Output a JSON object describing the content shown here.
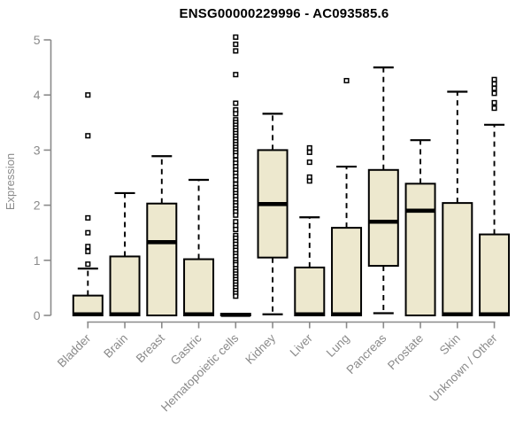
{
  "chart_data": {
    "type": "boxplot",
    "title": "ENSG00000229996 - AC093585.6",
    "ylabel": "Expression",
    "xlabel": "",
    "ylim": [
      0,
      5
    ],
    "yticks": [
      0,
      1,
      2,
      3,
      4,
      5
    ],
    "grid": false,
    "legend": "none",
    "categories": [
      "Bladder",
      "Brain",
      "Breast",
      "Gastric",
      "Hematopoietic cells",
      "Kidney",
      "Liver",
      "Lung",
      "Pancreas",
      "Prostate",
      "Skin",
      "Unknown / Other"
    ],
    "boxes": [
      {
        "category": "Bladder",
        "q1": 0,
        "median": 0.02,
        "q3": 0.36,
        "whisker_low": 0,
        "whisker_high": 0.85,
        "outliers": [
          0.93,
          1.16,
          1.25,
          1.5,
          1.77,
          3.26,
          4.0
        ]
      },
      {
        "category": "Brain",
        "q1": 0,
        "median": 0.02,
        "q3": 1.07,
        "whisker_low": 0,
        "whisker_high": 2.22,
        "outliers": []
      },
      {
        "category": "Breast",
        "q1": 0,
        "median": 1.33,
        "q3": 2.03,
        "whisker_low": 0,
        "whisker_high": 2.89,
        "outliers": []
      },
      {
        "category": "Gastric",
        "q1": 0,
        "median": 0.02,
        "q3": 1.02,
        "whisker_low": 0,
        "whisker_high": 2.46,
        "outliers": []
      },
      {
        "category": "Hematopoietic cells",
        "q1": 0,
        "median": 0.01,
        "q3": 0.03,
        "whisker_low": 0,
        "whisker_high": 0.03,
        "outliers": [
          5.05,
          4.92,
          4.8,
          4.37,
          3.85,
          3.73,
          3.66,
          3.55,
          3.5,
          3.45,
          3.4,
          3.35,
          3.3,
          3.25,
          3.2,
          3.15,
          3.1,
          3.05,
          3.0,
          2.95,
          2.9,
          2.82,
          2.76,
          2.7,
          2.64,
          2.58,
          2.52,
          2.46,
          2.38,
          2.32,
          2.27,
          2.21,
          2.16,
          2.1,
          2.04,
          1.99,
          1.93,
          1.88,
          1.82,
          1.7,
          1.63,
          1.56,
          1.45,
          1.4,
          1.34,
          1.29,
          1.23,
          1.18,
          1.12,
          1.07,
          1.01,
          0.96,
          0.92,
          0.85,
          0.8,
          0.75,
          0.7,
          0.65,
          0.6,
          0.55,
          0.5,
          0.45,
          0.4,
          0.35
        ]
      },
      {
        "category": "Kidney",
        "q1": 1.05,
        "median": 2.02,
        "q3": 3.0,
        "whisker_low": 0.02,
        "whisker_high": 3.66,
        "outliers": []
      },
      {
        "category": "Liver",
        "q1": 0,
        "median": 0.02,
        "q3": 0.87,
        "whisker_low": 0,
        "whisker_high": 1.78,
        "outliers": [
          2.44,
          2.51,
          2.78,
          2.96,
          3.04
        ]
      },
      {
        "category": "Lung",
        "q1": 0,
        "median": 0.02,
        "q3": 1.59,
        "whisker_low": 0,
        "whisker_high": 2.7,
        "outliers": [
          4.26
        ]
      },
      {
        "category": "Pancreas",
        "q1": 0.9,
        "median": 1.7,
        "q3": 2.64,
        "whisker_low": 0.04,
        "whisker_high": 4.5,
        "outliers": []
      },
      {
        "category": "Prostate",
        "q1": 0,
        "median": 1.9,
        "q3": 2.39,
        "whisker_low": 0,
        "whisker_high": 3.18,
        "outliers": []
      },
      {
        "category": "Skin",
        "q1": 0,
        "median": 0.02,
        "q3": 2.04,
        "whisker_low": 0,
        "whisker_high": 4.06,
        "outliers": []
      },
      {
        "category": "Unknown / Other",
        "q1": 0,
        "median": 0.02,
        "q3": 1.47,
        "whisker_low": 0,
        "whisker_high": 3.46,
        "outliers": [
          3.76,
          3.86,
          4.03,
          4.12,
          4.2,
          4.28
        ]
      }
    ],
    "colors": {
      "box_fill": "#EDE8CE",
      "box_stroke": "#000000",
      "median": "#000000",
      "whisker": "#000000",
      "axis": "#8A8A8A",
      "tick_label": "#8A8A8A",
      "title": "#000000",
      "background": "#FFFFFF"
    }
  }
}
